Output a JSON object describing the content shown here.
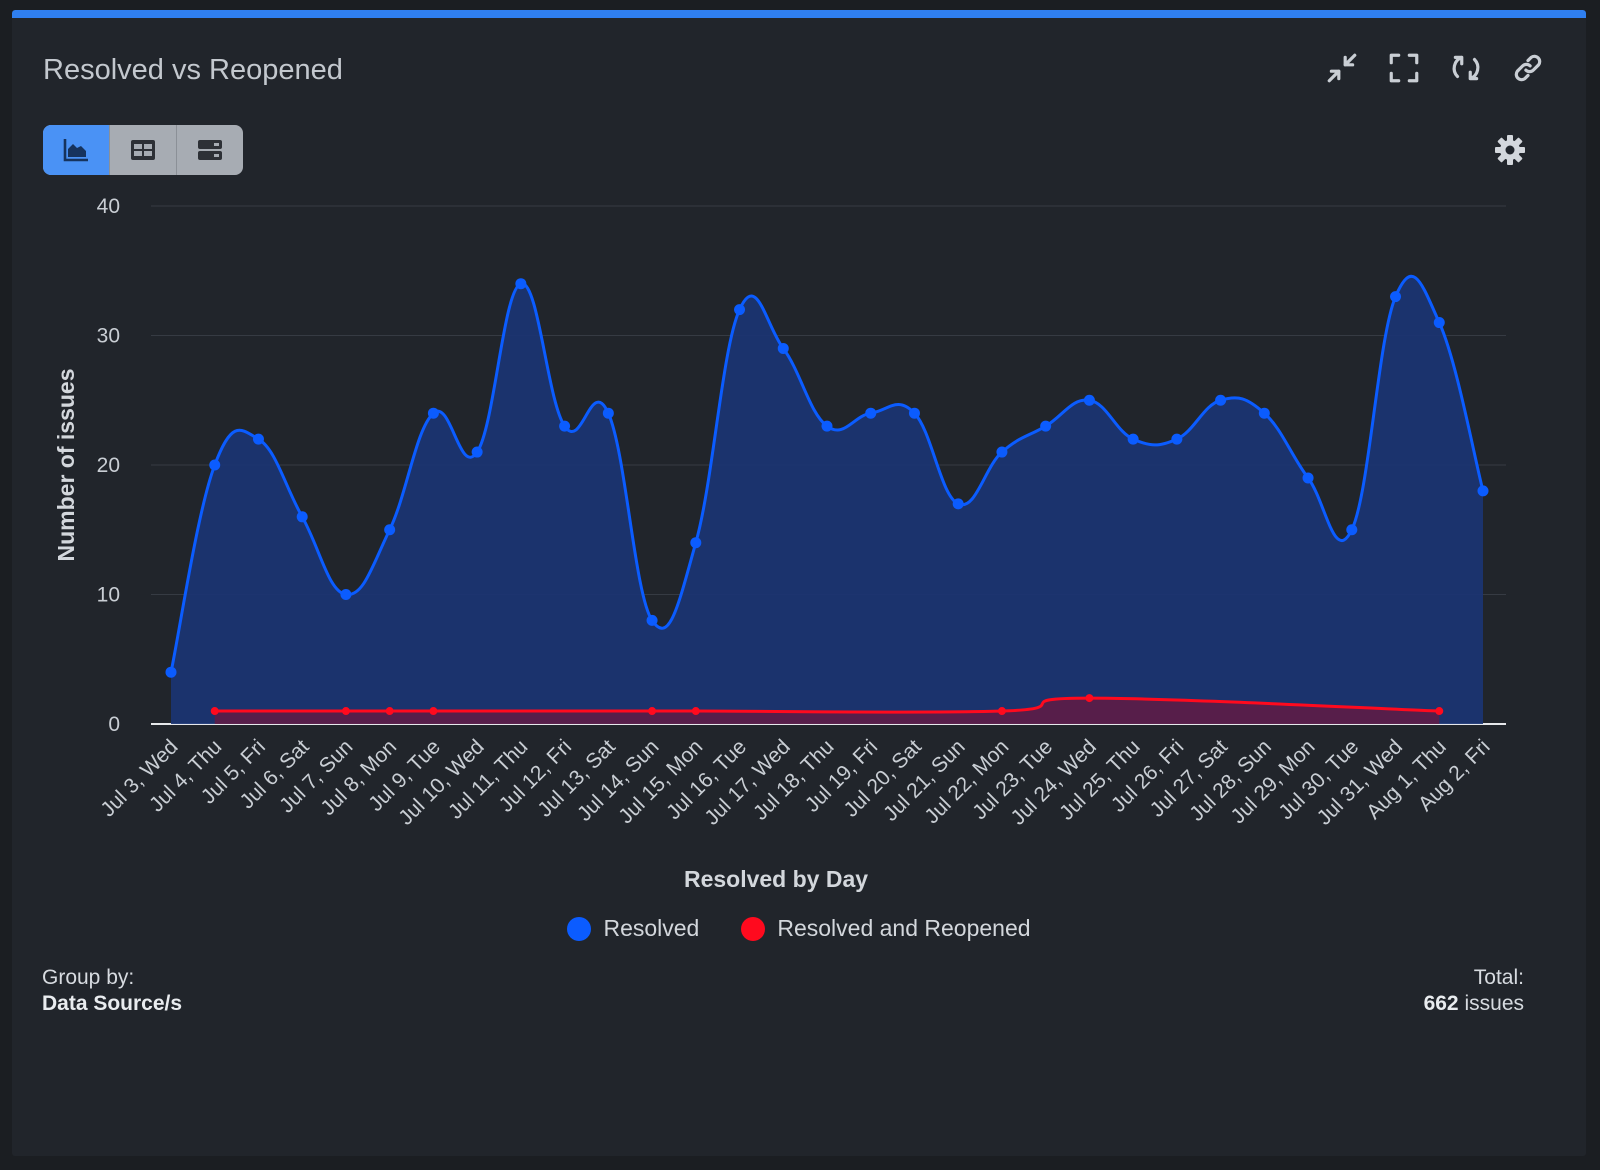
{
  "header": {
    "title": "Resolved vs Reopened",
    "actions": [
      "collapse-icon",
      "fullscreen-icon",
      "refresh-icon",
      "link-icon"
    ]
  },
  "view_toggle": [
    "chart-view",
    "table-view",
    "list-view"
  ],
  "colors": {
    "accent": "#2f7ff0",
    "resolved": "#0b5cff",
    "reopened": "#ff0a1e",
    "background": "#21252b"
  },
  "legend": {
    "resolved": "Resolved",
    "reopened": "Resolved and Reopened"
  },
  "footer": {
    "group_label": "Group by:",
    "group_value": "Data Source/s",
    "total_label": "Total:",
    "total_count": "662",
    "total_unit": "issues"
  },
  "chart_data": {
    "type": "area",
    "title": "Resolved vs Reopened",
    "xlabel": "Resolved by Day",
    "ylabel": "Number of issues",
    "ylim": [
      0,
      40
    ],
    "yticks": [
      0,
      10,
      20,
      30,
      40
    ],
    "grid": true,
    "legend_position": "bottom",
    "categories": [
      "Jul 3, Wed",
      "Jul 4, Thu",
      "Jul 5, Fri",
      "Jul 6, Sat",
      "Jul 7, Sun",
      "Jul 8, Mon",
      "Jul 9, Tue",
      "Jul 10, Wed",
      "Jul 11, Thu",
      "Jul 12, Fri",
      "Jul 13, Sat",
      "Jul 14, Sun",
      "Jul 15, Mon",
      "Jul 16, Tue",
      "Jul 17, Wed",
      "Jul 18, Thu",
      "Jul 19, Fri",
      "Jul 20, Sat",
      "Jul 21, Sun",
      "Jul 22, Mon",
      "Jul 23, Tue",
      "Jul 24, Wed",
      "Jul 25, Thu",
      "Jul 26, Fri",
      "Jul 27, Sat",
      "Jul 28, Sun",
      "Jul 29, Mon",
      "Jul 30, Tue",
      "Jul 31, Wed",
      "Aug 1, Thu",
      "Aug 2, Fri"
    ],
    "series": [
      {
        "name": "Resolved",
        "color": "#0b5cff",
        "values": [
          4,
          20,
          22,
          16,
          10,
          15,
          24,
          21,
          34,
          23,
          24,
          8,
          14,
          32,
          29,
          23,
          24,
          24,
          17,
          21,
          23,
          25,
          22,
          22,
          25,
          24,
          19,
          15,
          33,
          31,
          18
        ]
      },
      {
        "name": "Resolved and Reopened",
        "color": "#ff0a1e",
        "values": [
          null,
          1,
          null,
          null,
          1,
          1,
          1,
          null,
          null,
          null,
          null,
          1,
          1,
          null,
          null,
          null,
          null,
          null,
          null,
          1,
          null,
          2,
          null,
          null,
          null,
          null,
          null,
          null,
          null,
          1,
          null
        ]
      }
    ]
  }
}
